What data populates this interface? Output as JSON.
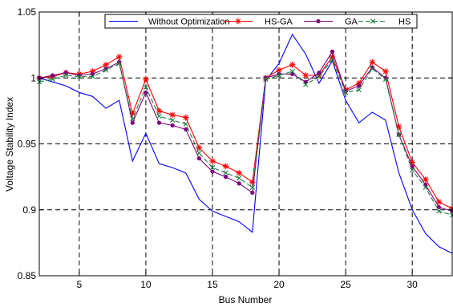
{
  "chart_data": {
    "type": "line",
    "title": "",
    "xlabel": "Bus Number",
    "ylabel": "Voltage Stability Index",
    "xlim": [
      2,
      33
    ],
    "ylim": [
      0.85,
      1.05
    ],
    "xticks": [
      5,
      10,
      15,
      20,
      25,
      30
    ],
    "yticks": [
      0.85,
      0.9,
      0.95,
      1,
      1.05
    ],
    "ytick_labels": [
      "0.85",
      "0.9",
      "0.95",
      "1",
      "1.05"
    ],
    "grid": true,
    "legend_position": "top",
    "x": [
      2,
      3,
      4,
      5,
      6,
      7,
      8,
      9,
      10,
      11,
      12,
      13,
      14,
      15,
      16,
      17,
      18,
      19,
      20,
      21,
      22,
      23,
      24,
      25,
      26,
      27,
      28,
      29,
      30,
      31,
      32,
      33
    ],
    "series": [
      {
        "name": "Without Optimization",
        "color": "#0000ff",
        "marker": "none",
        "line_style": "solid",
        "values": [
          1.0,
          0.997,
          0.994,
          0.989,
          0.986,
          0.977,
          0.983,
          0.937,
          0.958,
          0.935,
          0.932,
          0.928,
          0.908,
          0.899,
          0.895,
          0.891,
          0.883,
          0.998,
          1.011,
          1.033,
          1.018,
          0.996,
          1.013,
          0.983,
          0.966,
          0.974,
          0.968,
          0.928,
          0.9,
          0.882,
          0.872,
          0.867
        ]
      },
      {
        "name": "HS-GA",
        "color": "#ff0000",
        "marker": "star",
        "line_style": "solid",
        "values": [
          1.0,
          1.001,
          1.004,
          1.003,
          1.005,
          1.01,
          1.016,
          0.973,
          0.999,
          0.975,
          0.972,
          0.97,
          0.947,
          0.937,
          0.933,
          0.928,
          0.921,
          1.0,
          1.006,
          1.01,
          1.002,
          1.002,
          1.016,
          0.991,
          0.996,
          1.012,
          1.005,
          0.963,
          0.936,
          0.923,
          0.906,
          0.901
        ]
      },
      {
        "name": "GA",
        "color": "#800080",
        "marker": "dot",
        "line_style": "solid",
        "values": [
          1.0,
          1.002,
          1.004,
          1.002,
          1.003,
          1.007,
          1.012,
          0.966,
          0.989,
          0.966,
          0.964,
          0.961,
          0.939,
          0.929,
          0.925,
          0.92,
          0.913,
          1.0,
          1.003,
          1.003,
          0.997,
          1.004,
          1.02,
          0.99,
          0.994,
          1.008,
          1.0,
          0.957,
          0.933,
          0.919,
          0.902,
          0.899
        ]
      },
      {
        "name": "HS",
        "color": "#208040",
        "marker": "x",
        "line_style": "dashed",
        "values": [
          0.997,
          0.999,
          1.002,
          1.001,
          1.001,
          1.006,
          1.011,
          0.969,
          0.993,
          0.971,
          0.968,
          0.965,
          0.943,
          0.932,
          0.928,
          0.924,
          0.917,
          0.999,
          1.002,
          1.005,
          0.995,
          1.001,
          1.014,
          0.989,
          0.991,
          1.007,
          0.999,
          0.957,
          0.93,
          0.917,
          0.899,
          0.896
        ]
      }
    ]
  }
}
